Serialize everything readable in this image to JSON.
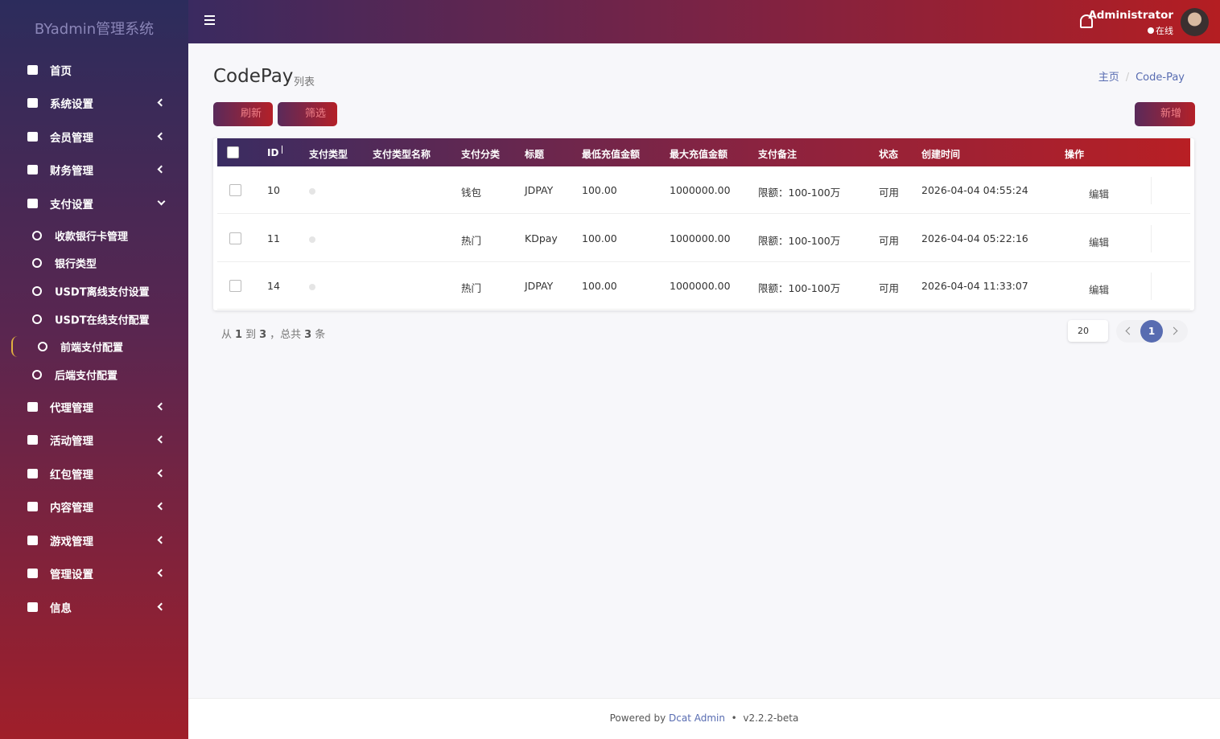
{
  "sidebar": {
    "brand": "BYadmin管理系统",
    "menu_top": [
      {
        "label": "首页"
      },
      {
        "label": "系统设置"
      },
      {
        "label": "会员管理"
      },
      {
        "label": "财务管理"
      },
      {
        "label": "支付设置"
      }
    ],
    "submenu": [
      {
        "label": "收款银行卡管理"
      },
      {
        "label": "银行类型"
      },
      {
        "label": "USDT离线支付设置"
      },
      {
        "label": "USDT在线支付配置"
      },
      {
        "label": "前端支付配置"
      },
      {
        "label": "后端支付配置"
      }
    ],
    "menu_bottom": [
      {
        "label": "代理管理"
      },
      {
        "label": "活动管理"
      },
      {
        "label": "红包管理"
      },
      {
        "label": "内容管理"
      },
      {
        "label": "游戏管理"
      },
      {
        "label": "管理设置"
      },
      {
        "label": "信息"
      }
    ]
  },
  "navbar": {
    "user": "Administrator",
    "status": "在线"
  },
  "header": {
    "title": "CodePay",
    "subtitle": "列表",
    "breadcrumb": [
      "主页",
      "Code-Pay"
    ]
  },
  "toolbar": {
    "refresh": "刷新",
    "filter": "筛选",
    "create": "新增"
  },
  "table": {
    "columns": [
      "ID",
      "支付类型",
      "支付类型名称",
      "支付分类",
      "标题",
      "最低充值金额",
      "最大充值金额",
      "支付备注",
      "状态",
      "创建时间",
      "操作"
    ],
    "rows": [
      {
        "id": "10",
        "category": "钱包",
        "title": "JDPAY",
        "min": "100.00",
        "max": "1000000.00",
        "note": "限额：100-100万",
        "status": "可用",
        "created": "2026-04-04 04:55:24",
        "action": "编辑"
      },
      {
        "id": "11",
        "category": "热门",
        "title": "KDpay",
        "min": "100.00",
        "max": "1000000.00",
        "note": "限额：100-100万",
        "status": "可用",
        "created": "2026-04-04 05:22:16",
        "action": "编辑"
      },
      {
        "id": "14",
        "category": "热门",
        "title": "JDPAY",
        "min": "100.00",
        "max": "1000000.00",
        "note": "限额：100-100万",
        "status": "可用",
        "created": "2026-04-04 11:33:07",
        "action": "编辑"
      }
    ]
  },
  "pagination": {
    "summary": [
      "从",
      "1",
      "到",
      "3",
      "，总共",
      "3",
      "条"
    ],
    "per_page": "20",
    "current": "1"
  },
  "footer": {
    "powered": "Powered by",
    "link": "Dcat Admin",
    "separator": "•",
    "version": "v2.2.2-beta"
  }
}
